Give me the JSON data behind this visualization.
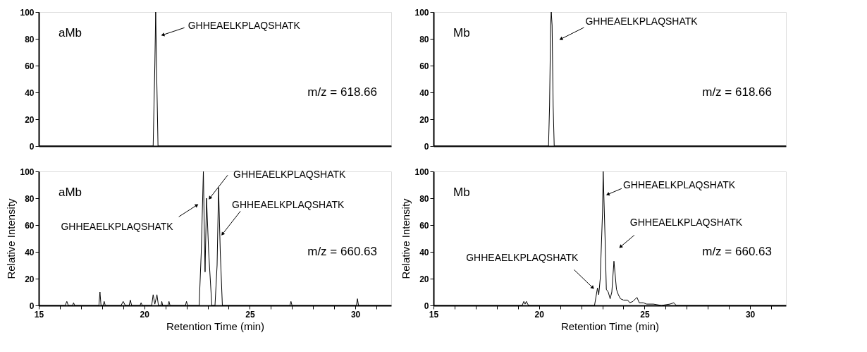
{
  "chart_data": [
    {
      "type": "line",
      "xlim": [
        15,
        31.7
      ],
      "ylim": [
        0,
        100
      ],
      "yticks": [
        0,
        20,
        40,
        60,
        80,
        100
      ],
      "tick_labels": "y",
      "grid": false,
      "marker": "none",
      "line_style": "solid",
      "x": [
        15,
        20.42,
        20.5,
        20.54,
        20.58,
        20.65,
        31.7
      ],
      "series": [
        {
          "color": "#000000",
          "values": [
            0,
            0,
            60,
            100,
            60,
            0,
            0
          ]
        }
      ],
      "annotations": [
        "aMb",
        "m/z = 618.66",
        {
          "text": "GHHEAELKPLAQSHATK",
          "x": 20.9,
          "y": 83
        }
      ]
    },
    {
      "type": "line",
      "xlim": [
        15,
        31.7
      ],
      "ylim": [
        0,
        100
      ],
      "yticks": [
        0,
        20,
        40,
        60,
        80,
        100
      ],
      "tick_labels": "y",
      "grid": false,
      "marker": "none",
      "line_style": "solid",
      "x": [
        15,
        20.45,
        20.5,
        20.55,
        20.58,
        20.62,
        20.67,
        20.72,
        31.7
      ],
      "series": [
        {
          "color": "#000000",
          "values": [
            0,
            0,
            30,
            90,
            100,
            90,
            30,
            0,
            0
          ]
        }
      ],
      "annotations": [
        "Mb",
        "m/z = 618.66",
        {
          "text": "GHHEAELKPLAQSHATK",
          "x": 21.06,
          "y": 80
        }
      ]
    },
    {
      "type": "line",
      "xlim": [
        15,
        31.7
      ],
      "ylim": [
        0,
        100
      ],
      "yticks": [
        0,
        20,
        40,
        60,
        80,
        100
      ],
      "xticks": [
        15,
        {
          "value": 16,
          "label": null
        },
        {
          "value": 17,
          "label": null
        },
        {
          "value": 18,
          "label": null
        },
        {
          "value": 19,
          "label": null
        },
        20,
        {
          "value": 21,
          "label": null
        },
        {
          "value": 22,
          "label": null
        },
        {
          "value": 23,
          "label": null
        },
        {
          "value": 24,
          "label": null
        },
        25,
        {
          "value": 26,
          "label": null
        },
        {
          "value": 27,
          "label": null
        },
        {
          "value": 28,
          "label": null
        },
        {
          "value": 29,
          "label": null
        },
        30,
        {
          "value": 31,
          "label": null
        }
      ],
      "grid": false,
      "marker": "none",
      "line_style": "solid",
      "xlabel": "Retention Time (min)",
      "ylabel": "Relative Intensity",
      "x": [
        15,
        16.25,
        16.33,
        16.4,
        16.6,
        16.65,
        16.7,
        17.85,
        17.9,
        17.95,
        18.05,
        18.1,
        18.15,
        18.9,
        19.0,
        19.1,
        19.28,
        19.34,
        19.4,
        19.8,
        19.85,
        19.9,
        20.35,
        20.42,
        20.5,
        20.6,
        20.67,
        20.8,
        20.83,
        20.87,
        21.12,
        21.17,
        21.22,
        21.95,
        22.0,
        22.05,
        22.6,
        22.7,
        22.8,
        22.84,
        22.88,
        22.95,
        23.05,
        23.2,
        23.35,
        23.45,
        23.52,
        23.6,
        23.7,
        26.9,
        26.95,
        27.0,
        30.05,
        30.1,
        30.15,
        31.7
      ],
      "series": [
        {
          "color": "#000000",
          "values": [
            0,
            0,
            3,
            0,
            0,
            2,
            0,
            0,
            10,
            0,
            0,
            3,
            0,
            0,
            3,
            0,
            0,
            4,
            0,
            0,
            2,
            0,
            0,
            8,
            1,
            8,
            0,
            0,
            3,
            0,
            0,
            3,
            0,
            0,
            3,
            0,
            0,
            40,
            100,
            60,
            25,
            80,
            40,
            0,
            0,
            30,
            88,
            40,
            0,
            0,
            3,
            0,
            0,
            5,
            0,
            0
          ]
        }
      ],
      "annotations": [
        "aMb",
        "m/z = 660.63",
        {
          "text": "GHHEAELKPLAQSHATK",
          "x": 22.47,
          "y": 74.6
        },
        {
          "text": "GHHEAELKPLAQSHATK",
          "x": 23.12,
          "y": 80.4
        },
        {
          "text": "GHHEAELKPLAQSHATK",
          "x": 23.72,
          "y": 53.5
        }
      ]
    },
    {
      "type": "line",
      "xlim": [
        15,
        31.7
      ],
      "ylim": [
        0,
        100
      ],
      "yticks": [
        0,
        20,
        40,
        60,
        80,
        100
      ],
      "xticks": [
        15,
        {
          "value": 16,
          "label": null
        },
        {
          "value": 17,
          "label": null
        },
        {
          "value": 18,
          "label": null
        },
        {
          "value": 19,
          "label": null
        },
        20,
        {
          "value": 21,
          "label": null
        },
        {
          "value": 22,
          "label": null
        },
        {
          "value": 23,
          "label": null
        },
        {
          "value": 24,
          "label": null
        },
        25,
        {
          "value": 26,
          "label": null
        },
        {
          "value": 27,
          "label": null
        },
        {
          "value": 28,
          "label": null
        },
        {
          "value": 29,
          "label": null
        },
        30,
        {
          "value": 31,
          "label": null
        }
      ],
      "grid": false,
      "marker": "none",
      "line_style": "solid",
      "xlabel": "Retention Time (min)",
      "ylabel": "Relative Intensity",
      "x": [
        15,
        19.2,
        19.28,
        19.34,
        19.4,
        19.5,
        22.63,
        22.77,
        22.83,
        22.9,
        23.01,
        23.04,
        23.13,
        23.19,
        23.28,
        23.37,
        23.45,
        23.55,
        23.67,
        23.76,
        23.86,
        24.0,
        24.2,
        24.3,
        24.45,
        24.64,
        24.75,
        24.94,
        25.1,
        25.42,
        25.8,
        26.2,
        26.39,
        26.5,
        31.7
      ],
      "series": [
        {
          "color": "#000000",
          "values": [
            0,
            0,
            3,
            1,
            3,
            0,
            0,
            13,
            8,
            20,
            70,
            100,
            50,
            12,
            10,
            5,
            10,
            33,
            12,
            8,
            5,
            4,
            4,
            2,
            3,
            6,
            2,
            2,
            1,
            1,
            0,
            1,
            2,
            0,
            0
          ]
        }
      ],
      "annotations": [
        "Mb",
        "m/z = 660.63",
        {
          "text": "GHHEAELKPLAQSHATK",
          "x": 23.28,
          "y": 83
        },
        {
          "text": "GHHEAELKPLAQSHATK",
          "x": 23.88,
          "y": 44
        },
        {
          "text": "GHHEAELKPLAQSHATK",
          "x": 22.53,
          "y": 13.5
        }
      ]
    }
  ]
}
